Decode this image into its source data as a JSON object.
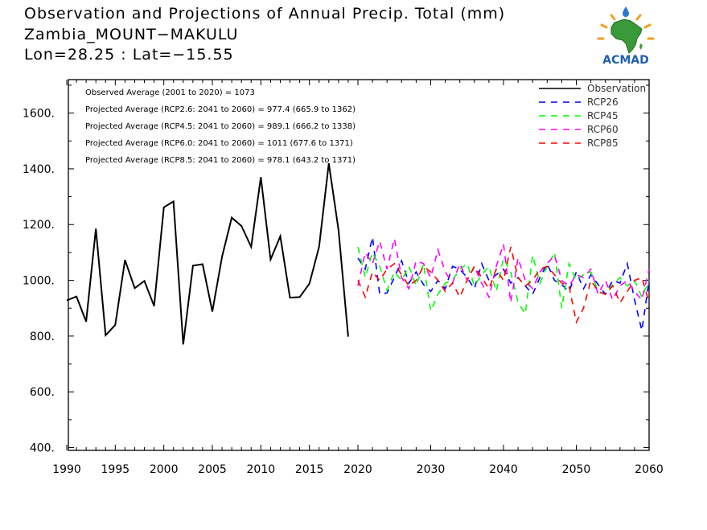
{
  "header": {
    "title": "Observation and Projections of Annual Precip. Total (mm)",
    "station": "Zambia_MOUNT−MAKULU",
    "coords": "Lon=28.25 : Lat=−15.55"
  },
  "logo": {
    "text": "ACMAD",
    "icon": "acmad-africa-logo"
  },
  "annotations": [
    "Observed Average (2001 to 2020) = 1073",
    "Projected Average (RCP2.6: 2041 to 2060) = 977.4 (665.9 to 1362)",
    "Projected Average (RCP4.5: 2041 to 2060) = 989.1 (666.2 to 1338)",
    "Projected Average (RCP6.0: 2041 to 2060) = 1011 (677.6 to 1371)",
    "Projected Average (RCP8.5: 2041 to 2060) = 978.1 (643.2 to 1371)"
  ],
  "chart_data": {
    "type": "line",
    "title": "Observation and Projections of Annual Precip. Total (mm)",
    "xlim": [
      1990,
      2060
    ],
    "ylim": [
      390,
      1720
    ],
    "x_ticks": [
      1990,
      1995,
      2000,
      2005,
      2010,
      2015,
      2020,
      2030,
      2040,
      2050,
      2060
    ],
    "x_tick_labels": [
      "1990",
      "1995",
      "2000",
      "2005",
      "2010",
      "2015",
      "2020",
      "2030",
      "2040",
      "2050",
      "2060"
    ],
    "y_ticks": [
      400,
      600,
      800,
      1000,
      1200,
      1400,
      1600
    ],
    "y_tick_labels": [
      "400.",
      "600.",
      "800.",
      "1000.",
      "1200.",
      "1400.",
      "1600."
    ],
    "legend_position": "top-right",
    "grid": false,
    "series": [
      {
        "name": "Observation",
        "color": "#000000",
        "dashed": false,
        "x": [
          1990,
          1991,
          1992,
          1993,
          1994,
          1995,
          1996,
          1997,
          1998,
          1999,
          2000,
          2001,
          2002,
          2003,
          2004,
          2005,
          2006,
          2007,
          2008,
          2009,
          2010,
          2011,
          2012,
          2013,
          2014,
          2015,
          2016,
          2017,
          2018,
          2019
        ],
        "values": [
          928,
          942,
          852,
          1185,
          803,
          840,
          1073,
          972,
          998,
          908,
          1262,
          1283,
          770,
          1053,
          1058,
          888,
          1085,
          1225,
          1195,
          1120,
          1370,
          1075,
          1158,
          938,
          940,
          988,
          1120,
          1420,
          1180,
          798
        ]
      },
      {
        "name": "RCP26",
        "color": "#0000ff",
        "dashed": true,
        "x": [
          2020,
          2021,
          2022,
          2023,
          2024,
          2025,
          2026,
          2027,
          2028,
          2029,
          2030,
          2031,
          2032,
          2033,
          2034,
          2035,
          2036,
          2037,
          2038,
          2039,
          2040,
          2041,
          2042,
          2043,
          2044,
          2045,
          2046,
          2047,
          2048,
          2049,
          2050,
          2051,
          2052,
          2053,
          2054,
          2055,
          2056,
          2057,
          2058,
          2059,
          2060
        ],
        "values": [
          1080,
          1040,
          1155,
          950,
          955,
          1010,
          1070,
          990,
          1030,
          985,
          960,
          1000,
          970,
          1050,
          1040,
          1010,
          970,
          1060,
          1000,
          1020,
          1040,
          990,
          1010,
          980,
          950,
          1010,
          1060,
          1000,
          985,
          960,
          1030,
          970,
          1020,
          985,
          950,
          1000,
          990,
          1060,
          930,
          820,
          1000
        ]
      },
      {
        "name": "RCP45",
        "color": "#00ff00",
        "dashed": true,
        "x": [
          2020,
          2021,
          2022,
          2023,
          2024,
          2025,
          2026,
          2027,
          2028,
          2029,
          2030,
          2031,
          2032,
          2033,
          2034,
          2035,
          2036,
          2037,
          2038,
          2039,
          2040,
          2041,
          2042,
          2043,
          2044,
          2045,
          2046,
          2047,
          2048,
          2049,
          2050,
          2051,
          2052,
          2053,
          2054,
          2055,
          2056,
          2057,
          2058,
          2059,
          2060
        ],
        "values": [
          1120,
          1010,
          1100,
          1050,
          965,
          1030,
          1000,
          1050,
          980,
          1060,
          890,
          950,
          990,
          1000,
          1040,
          1060,
          980,
          1020,
          1050,
          960,
          1080,
          1030,
          920,
          880,
          1090,
          990,
          1050,
          1100,
          900,
          1060,
          1000,
          1020,
          1030,
          960,
          950,
          985,
          1010,
          980,
          1000,
          940,
          1000
        ]
      },
      {
        "name": "RCP60",
        "color": "#ff00ff",
        "dashed": true,
        "x": [
          2020,
          2021,
          2022,
          2023,
          2024,
          2025,
          2026,
          2027,
          2028,
          2029,
          2030,
          2031,
          2032,
          2033,
          2034,
          2035,
          2036,
          2037,
          2038,
          2039,
          2040,
          2041,
          2042,
          2043,
          2044,
          2045,
          2046,
          2047,
          2048,
          2049,
          2050,
          2051,
          2052,
          2053,
          2054,
          2055,
          2056,
          2057,
          2058,
          2059,
          2060
        ],
        "values": [
          980,
          1100,
          1060,
          1140,
          1040,
          1150,
          1010,
          970,
          1070,
          1060,
          1010,
          1110,
          1030,
          990,
          1060,
          1000,
          1050,
          990,
          940,
          1050,
          1130,
          920,
          1080,
          1000,
          970,
          1030,
          1060,
          1090,
          1000,
          980,
          1020,
          1010,
          1040,
          950,
          1000,
          930,
          980,
          1000,
          960,
          930,
          1040
        ]
      },
      {
        "name": "RCP85",
        "color": "#ff0000",
        "dashed": true,
        "x": [
          2020,
          2021,
          2022,
          2023,
          2024,
          2025,
          2026,
          2027,
          2028,
          2029,
          2030,
          2031,
          2032,
          2033,
          2034,
          2035,
          2036,
          2037,
          2038,
          2039,
          2040,
          2041,
          2042,
          2043,
          2044,
          2045,
          2046,
          2047,
          2048,
          2049,
          2050,
          2051,
          2052,
          2053,
          2054,
          2055,
          2056,
          2057,
          2058,
          2059,
          2060
        ],
        "values": [
          1000,
          940,
          1030,
          1000,
          1040,
          1060,
          1020,
          980,
          1000,
          1050,
          1030,
          1000,
          960,
          990,
          940,
          1000,
          1050,
          1010,
          970,
          1040,
          1000,
          1120,
          1010,
          980,
          1000,
          1040,
          1050,
          1020,
          990,
          980,
          850,
          900,
          1000,
          960,
          950,
          980,
          920,
          960,
          1000,
          1010,
          920
        ]
      }
    ]
  }
}
